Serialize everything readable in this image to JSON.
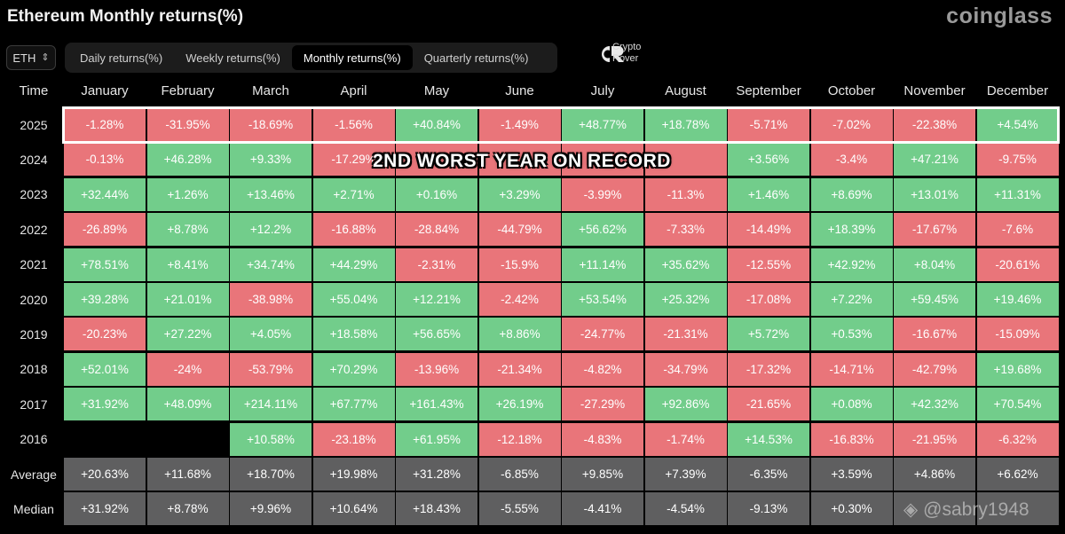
{
  "header": {
    "title": "Ethereum Monthly returns(%)",
    "brand": "coinglass"
  },
  "controls": {
    "asset": "ETH",
    "tabs": [
      "Daily returns(%)",
      "Weekly returns(%)",
      "Monthly returns(%)",
      "Quarterly returns(%)"
    ],
    "active_tab": "Monthly returns(%)"
  },
  "logo": {
    "line1": "Crypto",
    "line2": "Rover"
  },
  "overlay_text": "2ND WORST YEAR ON RECORD",
  "watermark": "@sabry1948",
  "colors": {
    "positive": "#72cd8b",
    "negative": "#e9757a",
    "stat": "#5f5f60",
    "background": "#000000"
  },
  "chart_data": {
    "type": "table",
    "title": "Ethereum Monthly returns(%)",
    "row_header": "Time",
    "columns": [
      "January",
      "February",
      "March",
      "April",
      "May",
      "June",
      "July",
      "August",
      "September",
      "October",
      "November",
      "December"
    ],
    "highlighted_row": "2025",
    "rows": [
      {
        "label": "2025",
        "kind": "year",
        "values": [
          "-1.28%",
          "-31.95%",
          "-18.69%",
          "-1.56%",
          "+40.84%",
          "-1.49%",
          "+48.77%",
          "+18.78%",
          "-5.71%",
          "-7.02%",
          "-22.38%",
          "+4.54%"
        ]
      },
      {
        "label": "2024",
        "kind": "year",
        "values": [
          "-0.13%",
          "+46.28%",
          "+9.33%",
          "-17.29%",
          "",
          "",
          "",
          "",
          "+3.56%",
          "-3.4%",
          "+47.21%",
          "-9.75%"
        ]
      },
      {
        "label": "2023",
        "kind": "year",
        "values": [
          "+32.44%",
          "+1.26%",
          "+13.46%",
          "+2.71%",
          "+0.16%",
          "+3.29%",
          "-3.99%",
          "-11.3%",
          "+1.46%",
          "+8.69%",
          "+13.01%",
          "+11.31%"
        ]
      },
      {
        "label": "2022",
        "kind": "year",
        "values": [
          "-26.89%",
          "+8.78%",
          "+12.2%",
          "-16.88%",
          "-28.84%",
          "-44.79%",
          "+56.62%",
          "-7.33%",
          "-14.49%",
          "+18.39%",
          "-17.67%",
          "-7.6%"
        ]
      },
      {
        "label": "2021",
        "kind": "year",
        "values": [
          "+78.51%",
          "+8.41%",
          "+34.74%",
          "+44.29%",
          "-2.31%",
          "-15.9%",
          "+11.14%",
          "+35.62%",
          "-12.55%",
          "+42.92%",
          "+8.04%",
          "-20.61%"
        ]
      },
      {
        "label": "2020",
        "kind": "year",
        "values": [
          "+39.28%",
          "+21.01%",
          "-38.98%",
          "+55.04%",
          "+12.21%",
          "-2.42%",
          "+53.54%",
          "+25.32%",
          "-17.08%",
          "+7.22%",
          "+59.45%",
          "+19.46%"
        ]
      },
      {
        "label": "2019",
        "kind": "year",
        "values": [
          "-20.23%",
          "+27.22%",
          "+4.05%",
          "+18.58%",
          "+56.65%",
          "+8.86%",
          "-24.77%",
          "-21.31%",
          "+5.72%",
          "+0.53%",
          "-16.67%",
          "-15.09%"
        ]
      },
      {
        "label": "2018",
        "kind": "year",
        "values": [
          "+52.01%",
          "-24%",
          "-53.79%",
          "+70.29%",
          "-13.96%",
          "-21.34%",
          "-4.82%",
          "-34.79%",
          "-17.32%",
          "-14.71%",
          "-42.79%",
          "+19.68%"
        ]
      },
      {
        "label": "2017",
        "kind": "year",
        "values": [
          "+31.92%",
          "+48.09%",
          "+214.11%",
          "+67.77%",
          "+161.43%",
          "+26.19%",
          "-27.29%",
          "+92.86%",
          "-21.65%",
          "+0.08%",
          "+42.32%",
          "+70.54%"
        ]
      },
      {
        "label": "2016",
        "kind": "year",
        "values": [
          "",
          "",
          "+10.58%",
          "-23.18%",
          "+61.95%",
          "-12.18%",
          "-4.83%",
          "-1.74%",
          "+14.53%",
          "-16.83%",
          "-21.95%",
          "-6.32%"
        ]
      },
      {
        "label": "Average",
        "kind": "stat",
        "values": [
          "+20.63%",
          "+11.68%",
          "+18.70%",
          "+19.98%",
          "+31.28%",
          "-6.85%",
          "+9.85%",
          "+7.39%",
          "-6.35%",
          "+3.59%",
          "+4.86%",
          "+6.62%"
        ]
      },
      {
        "label": "Median",
        "kind": "stat",
        "values": [
          "+31.92%",
          "+8.78%",
          "+9.96%",
          "+10.64%",
          "+18.43%",
          "-5.55%",
          "-4.41%",
          "-4.54%",
          "-9.13%",
          "+0.30%",
          "",
          ""
        ]
      }
    ],
    "row_colors_2024": [
      "neg",
      "pos",
      "pos",
      "neg",
      "neg",
      "neg",
      "neg",
      "neg",
      "pos",
      "neg",
      "pos",
      "neg"
    ]
  }
}
